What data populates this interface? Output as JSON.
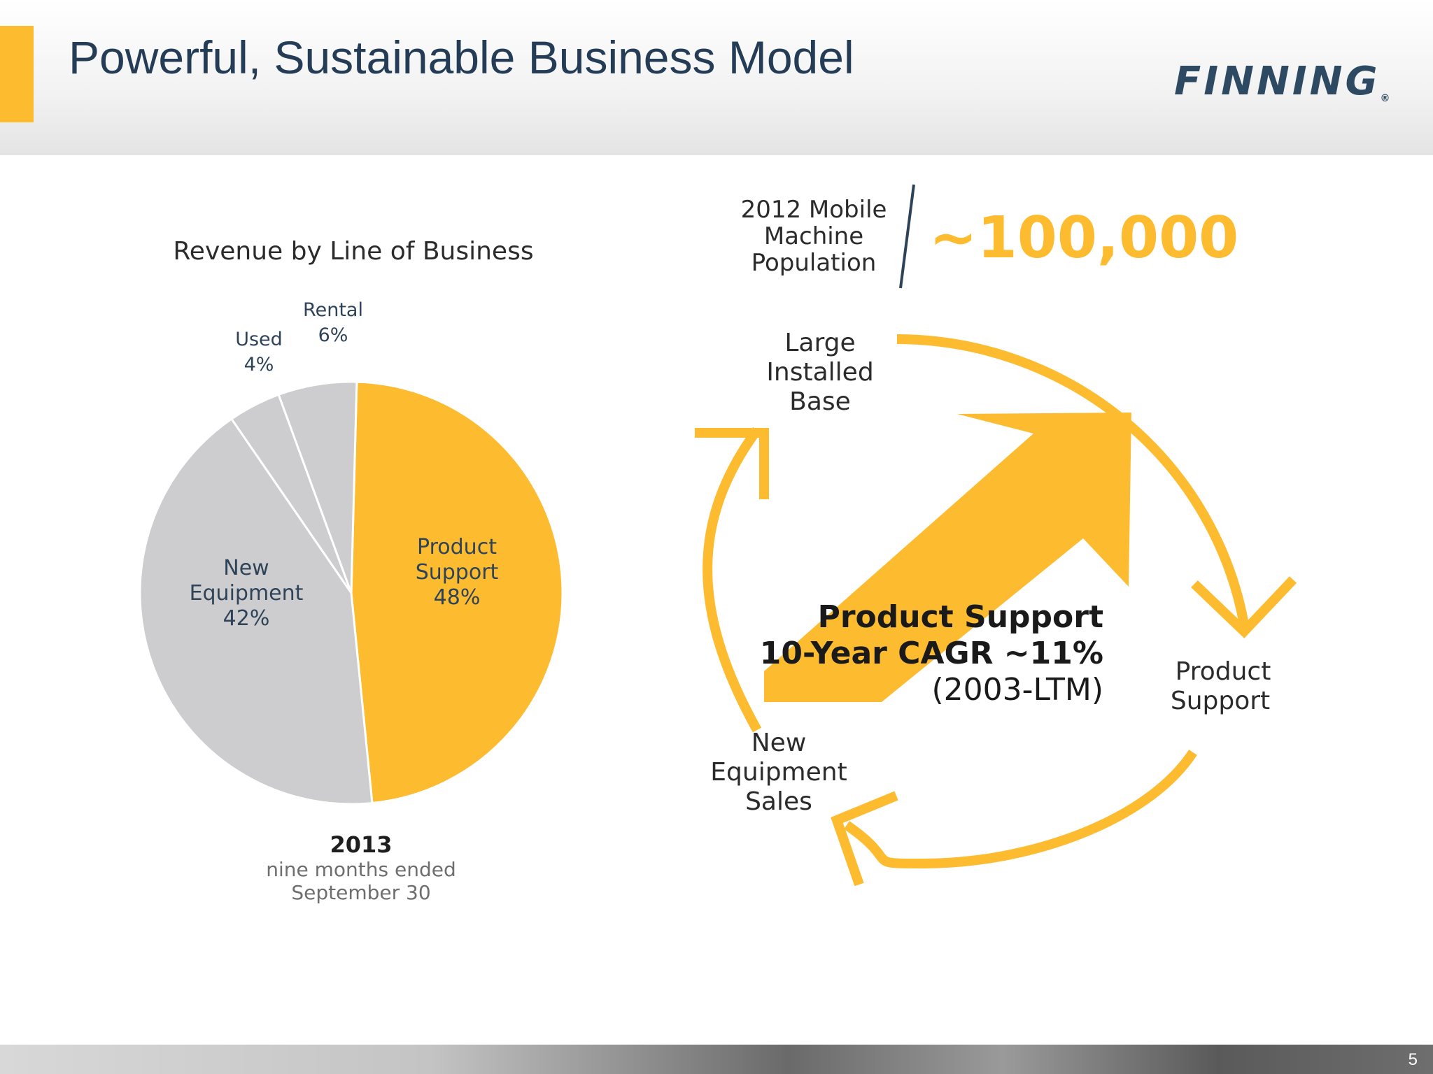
{
  "slide": {
    "title": "Powerful, Sustainable Business Model",
    "logo_text": "FINNING",
    "logo_mark": "®",
    "page_number": "5"
  },
  "colors": {
    "accent": "#fdbc2f",
    "grey_slice": "#cdcdcf",
    "title_text": "#243c55",
    "label_text": "#2f4358"
  },
  "chart_data": {
    "type": "pie",
    "title": "Revenue by Line of Business",
    "slices": [
      {
        "name": "Product Support",
        "value": 48,
        "label": "48%"
      },
      {
        "name": "New Equipment",
        "value": 42,
        "label": "42%"
      },
      {
        "name": "Used",
        "value": 4,
        "label": "4%"
      },
      {
        "name": "Rental",
        "value": 6,
        "label": "6%"
      }
    ],
    "caption": {
      "year": "2013",
      "line1": "nine months ended",
      "line2": "September 30"
    }
  },
  "diagram": {
    "population_label": [
      "2012 Mobile",
      "Machine",
      "Population"
    ],
    "population_value": "~100,000",
    "cycle": {
      "large_installed_base": [
        "Large",
        "Installed",
        "Base"
      ],
      "product_support": [
        "Product",
        "Support"
      ],
      "new_equipment_sales": [
        "New",
        "Equipment",
        "Sales"
      ]
    },
    "growth": {
      "line1": "Product Support",
      "line2": "10-Year CAGR ~11%",
      "line3": "(2003-LTM)"
    }
  }
}
